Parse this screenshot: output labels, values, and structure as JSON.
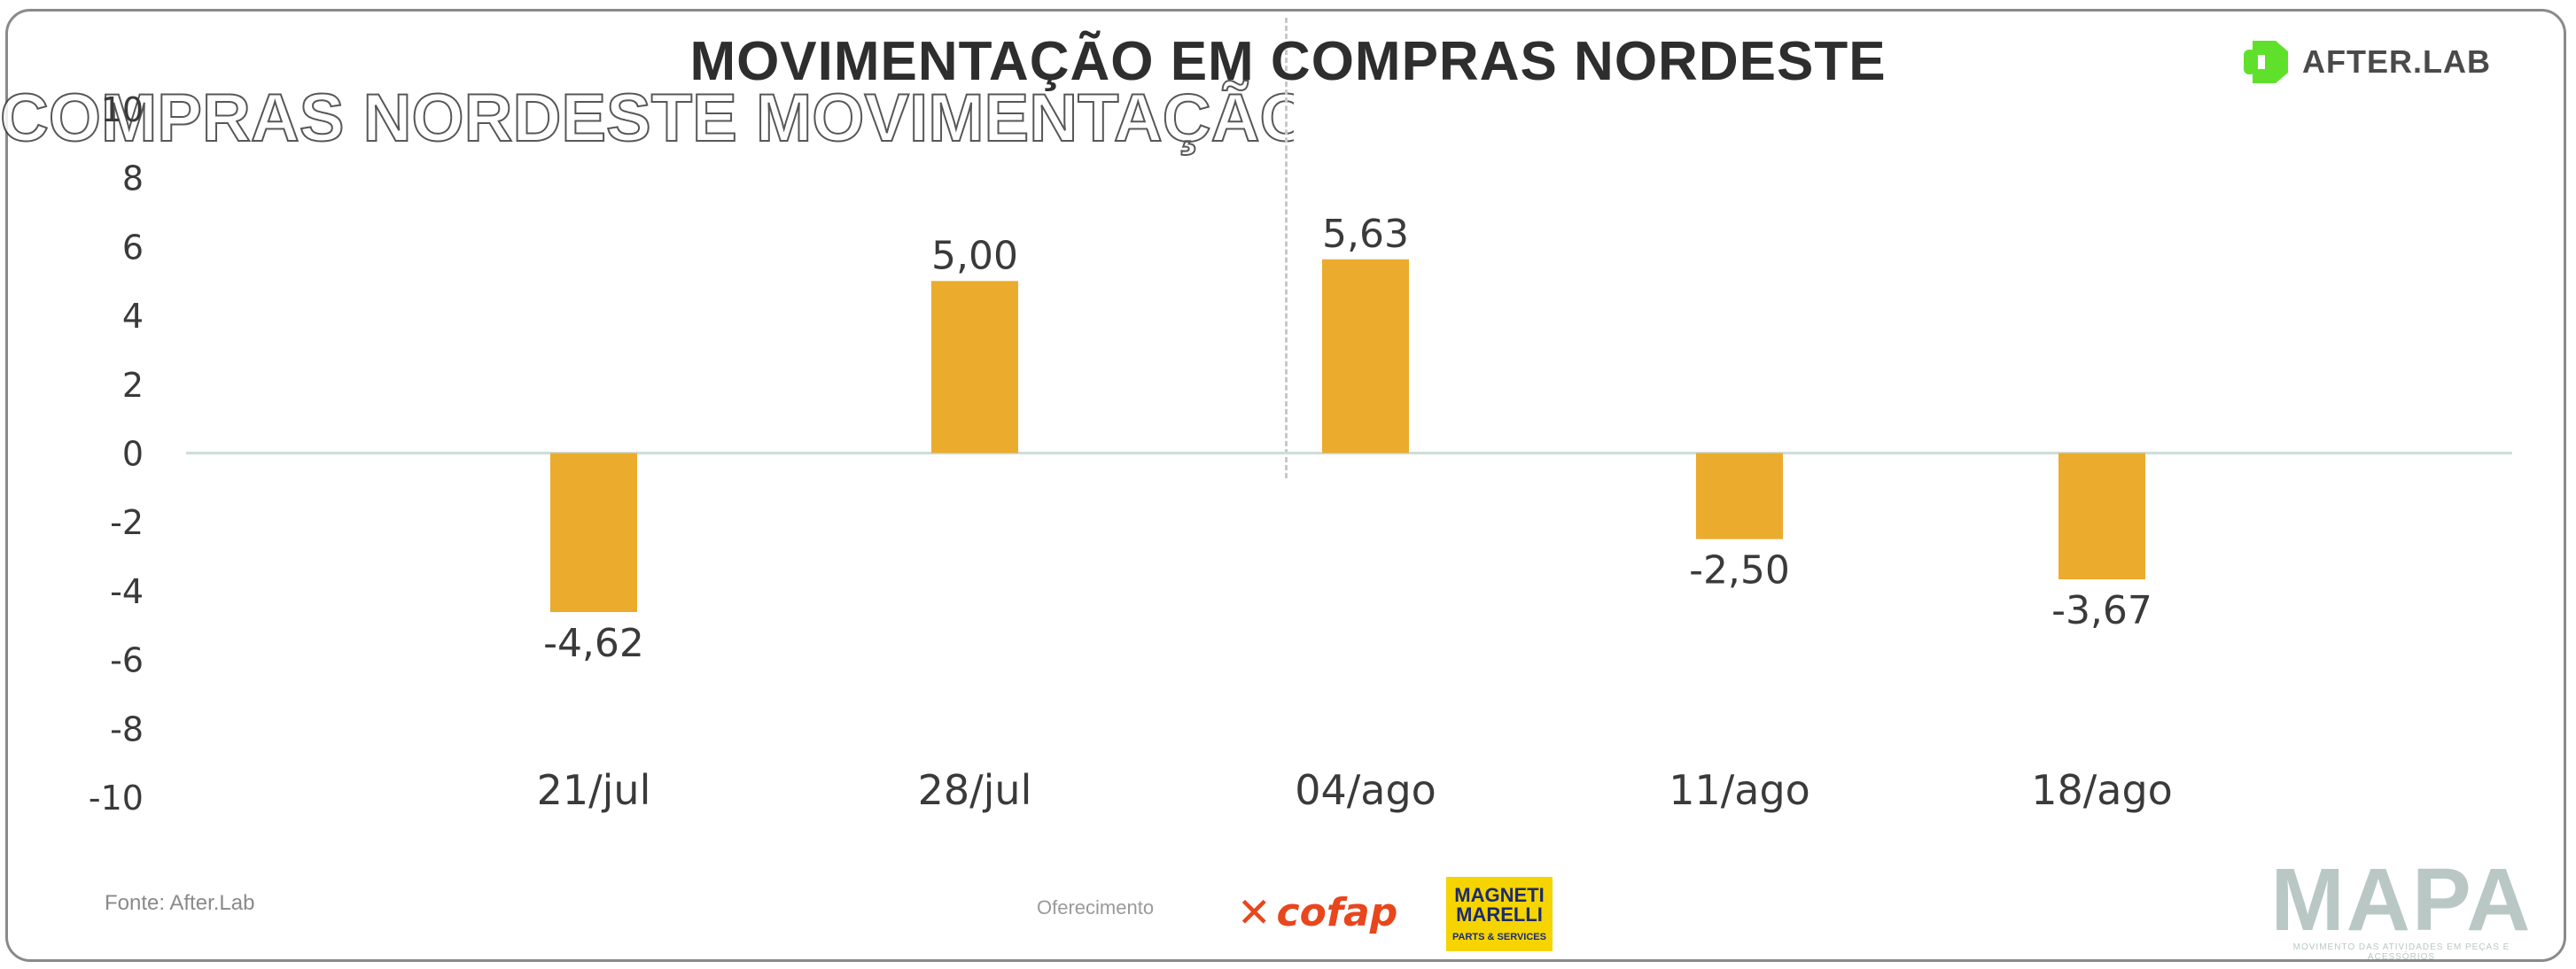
{
  "header": {
    "title": "MOVIMENTAÇÃO EM COMPRAS NORDESTE",
    "ghost_text": "COMPRAS NORDESTE  MOVIMENTAÇÃO EM (",
    "brand": "AFTER.LAB",
    "brand_color": "#5fe12b"
  },
  "chart_data": {
    "type": "bar",
    "title": "MOVIMENTAÇÃO EM COMPRAS NORDESTE",
    "categories": [
      "21/jul",
      "28/jul",
      "04/ago",
      "11/ago",
      "18/ago"
    ],
    "values": [
      -4.62,
      5.0,
      5.63,
      -2.5,
      -3.67
    ],
    "value_labels": [
      "-4,62",
      "5,00",
      "5,63",
      "-2,50",
      "-3,67"
    ],
    "ylim": [
      -10,
      10
    ],
    "yticks": [
      10,
      8,
      6,
      4,
      2,
      0,
      -2,
      -4,
      -6,
      -8,
      -10
    ],
    "grid": false,
    "legend": "none",
    "bar_color": "#ebab2d",
    "zero_line_color": "#cfdcda"
  },
  "footer": {
    "source": "Fonte: After.Lab",
    "sponsor_label": "Oferecimento",
    "cofap_logo": "cofap",
    "magneti_logo_line1": "MAGNETI",
    "magneti_logo_line2": "MARELLI",
    "magneti_logo_tagline": "PARTS & SERVICES",
    "mapa_logo": "MAPA",
    "mapa_tagline": "MOVIMENTO DAS ATIVIDADES EM PEÇAS E ACESSÓRIOS"
  }
}
